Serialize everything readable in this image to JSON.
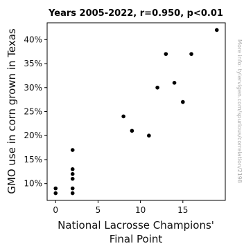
{
  "chart_data": {
    "type": "scatter",
    "title": "Years 2005-2022, r=0.950, p<0.01",
    "xlabel_lines": [
      "National Lacrosse Champions'",
      "Final Point"
    ],
    "ylabel": "GMO use in corn grown in Texas",
    "side_note": "More info: tylervigen.com/spurious/correlation/2198",
    "xlim": [
      -1,
      20
    ],
    "ylim": [
      0.065,
      0.435
    ],
    "x_ticks": [
      0,
      5,
      10,
      15
    ],
    "x_tick_labels": [
      "0",
      "5",
      "10",
      "15"
    ],
    "y_ticks": [
      0.1,
      0.15,
      0.2,
      0.25,
      0.3,
      0.35,
      0.4
    ],
    "y_tick_labels": [
      "10%",
      "15%",
      "20%",
      "25%",
      "30%",
      "35%",
      "40%"
    ],
    "grid": false,
    "point_color": "#000000",
    "points": [
      {
        "x": 0,
        "y": 0.09
      },
      {
        "x": 0,
        "y": 0.08
      },
      {
        "x": 2,
        "y": 0.08
      },
      {
        "x": 2,
        "y": 0.09
      },
      {
        "x": 2,
        "y": 0.11
      },
      {
        "x": 2,
        "y": 0.12
      },
      {
        "x": 2,
        "y": 0.13
      },
      {
        "x": 2,
        "y": 0.17
      },
      {
        "x": 8,
        "y": 0.24
      },
      {
        "x": 9,
        "y": 0.21
      },
      {
        "x": 11,
        "y": 0.2
      },
      {
        "x": 12,
        "y": 0.3
      },
      {
        "x": 13,
        "y": 0.37
      },
      {
        "x": 14,
        "y": 0.31
      },
      {
        "x": 15,
        "y": 0.27
      },
      {
        "x": 16,
        "y": 0.37
      },
      {
        "x": 19,
        "y": 0.42
      }
    ]
  }
}
